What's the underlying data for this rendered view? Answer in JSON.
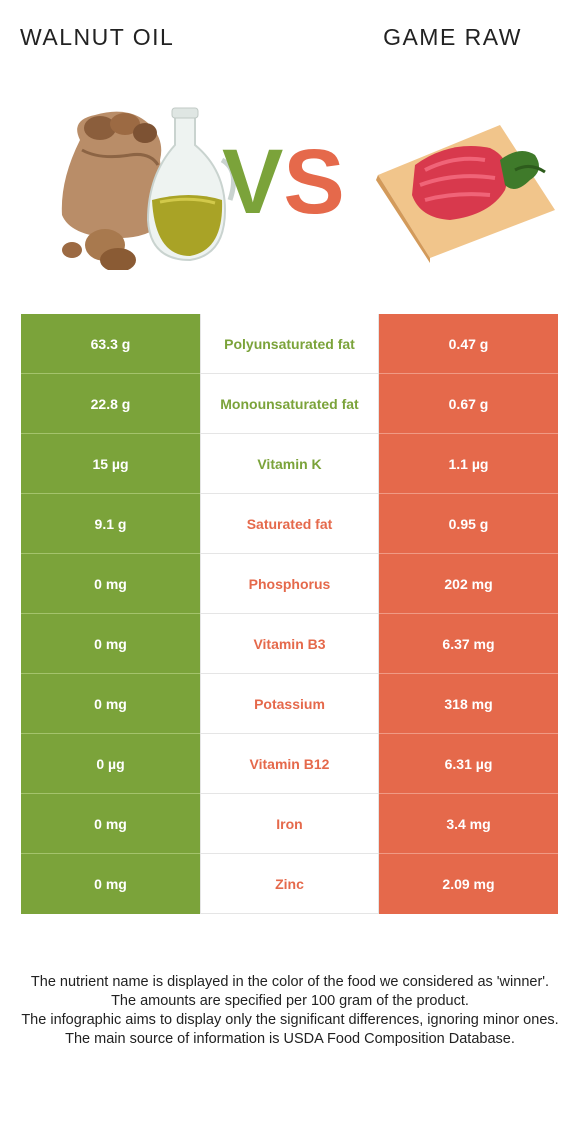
{
  "header": {
    "left_title": "WALNUT OIL",
    "right_title": "GAME RAW",
    "vs_v": "V",
    "vs_s": "S"
  },
  "colors": {
    "left": "#7ba33a",
    "right": "#e5694b"
  },
  "rows": [
    {
      "left": "63.3 g",
      "nutrient": "Polyunsaturated fat",
      "right": "0.47 g",
      "winner": "left"
    },
    {
      "left": "22.8 g",
      "nutrient": "Monounsaturated fat",
      "right": "0.67 g",
      "winner": "left"
    },
    {
      "left": "15 µg",
      "nutrient": "Vitamin K",
      "right": "1.1 µg",
      "winner": "left"
    },
    {
      "left": "9.1 g",
      "nutrient": "Saturated fat",
      "right": "0.95 g",
      "winner": "right"
    },
    {
      "left": "0 mg",
      "nutrient": "Phosphorus",
      "right": "202 mg",
      "winner": "right"
    },
    {
      "left": "0 mg",
      "nutrient": "Vitamin B3",
      "right": "6.37 mg",
      "winner": "right"
    },
    {
      "left": "0 mg",
      "nutrient": "Potassium",
      "right": "318 mg",
      "winner": "right"
    },
    {
      "left": "0 µg",
      "nutrient": "Vitamin B12",
      "right": "6.31 µg",
      "winner": "right"
    },
    {
      "left": "0 mg",
      "nutrient": "Iron",
      "right": "3.4 mg",
      "winner": "right"
    },
    {
      "left": "0 mg",
      "nutrient": "Zinc",
      "right": "2.09 mg",
      "winner": "right"
    }
  ],
  "footer": {
    "line1": "The nutrient name is displayed in the color of the food we considered as 'winner'.",
    "line2": "The amounts are specified per 100 gram of the product.",
    "line3": "The infographic aims to display only the significant differences, ignoring minor ones.",
    "line4": "The main source of information is USDA Food Composition Database."
  }
}
